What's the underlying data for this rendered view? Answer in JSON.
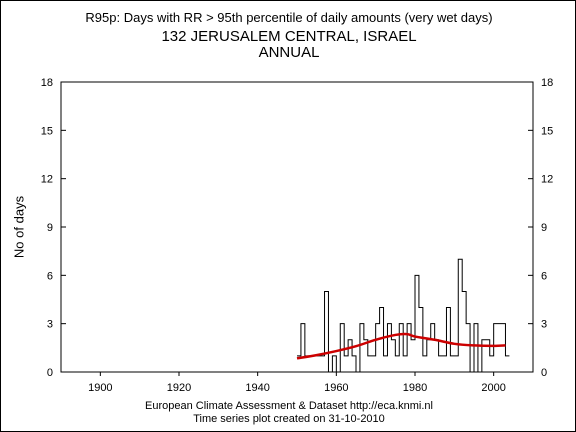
{
  "subtitle": "R95p: Days with RR > 95th percentile of daily amounts (very wet days)",
  "title": "132 JERUSALEM CENTRAL, ISRAEL",
  "subtitle2": "ANNUAL",
  "footer_line1": "European Climate Assessment & Dataset  http://eca.knmi.nl",
  "footer_line2": "Time series plot created on 31-10-2010",
  "colors": {
    "series": "#000000",
    "trend": "#cc0000",
    "axes": "#000000"
  },
  "chart_data": {
    "type": "line",
    "step": true,
    "ylabel": "No of days",
    "xlabel": "",
    "xlim": [
      1890,
      2010
    ],
    "ylim": [
      0,
      18
    ],
    "xticks": [
      1900,
      1920,
      1940,
      1960,
      1980,
      2000
    ],
    "yticks": [
      0,
      3,
      6,
      9,
      12,
      15,
      18
    ],
    "grid": false,
    "series": [
      {
        "x": [
          1950,
          1951,
          1952,
          1953,
          1954,
          1955,
          1956,
          1957,
          1958,
          1959,
          1960,
          1961,
          1962,
          1963,
          1964,
          1965,
          1966,
          1967,
          1968,
          1969,
          1970,
          1971,
          1972,
          1973,
          1974,
          1975,
          1976,
          1977,
          1978,
          1979,
          1980,
          1981,
          1982,
          1983,
          1984,
          1985,
          1986,
          1987,
          1988,
          1989,
          1990,
          1991,
          1992,
          1993,
          1994,
          1995,
          1996,
          1997,
          1998,
          1999,
          2000,
          2001,
          2002,
          2003
        ],
        "values": [
          1,
          3,
          1,
          1,
          1,
          1,
          1,
          5,
          0,
          1,
          0,
          3,
          1,
          2,
          1,
          0,
          3,
          2,
          1,
          1,
          3,
          4,
          1,
          3,
          2,
          1,
          3,
          1,
          3,
          2,
          6,
          4,
          1,
          2,
          3,
          2,
          1,
          1,
          4,
          1,
          1,
          7,
          5,
          3,
          0,
          3,
          0,
          2,
          2,
          1,
          3,
          3,
          3,
          1
        ]
      },
      {
        "x": [
          1950,
          1955,
          1960,
          1965,
          1970,
          1975,
          1978,
          1980,
          1985,
          1990,
          1995,
          2000,
          2003
        ],
        "values": [
          0.85,
          1.05,
          1.3,
          1.6,
          2.0,
          2.3,
          2.35,
          2.2,
          2.0,
          1.75,
          1.65,
          1.62,
          1.65
        ]
      }
    ]
  }
}
